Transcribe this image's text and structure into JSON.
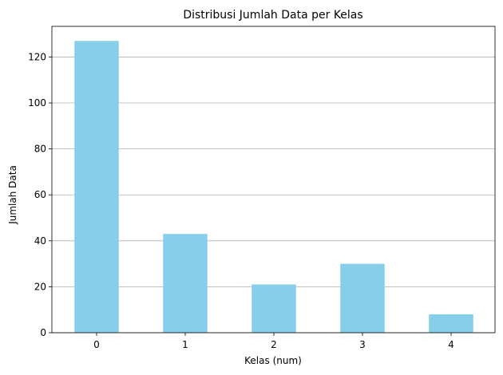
{
  "chart_data": {
    "type": "bar",
    "title": "Distribusi Jumlah Data per Kelas",
    "xlabel": "Kelas (num)",
    "ylabel": "Jumlah Data",
    "categories": [
      "0",
      "1",
      "2",
      "3",
      "4"
    ],
    "values": [
      127,
      43,
      21,
      30,
      8
    ],
    "ylim": [
      0,
      133.35
    ],
    "yticks": [
      0,
      20,
      40,
      60,
      80,
      100,
      120
    ],
    "grid": "y-axis only",
    "legend": "none",
    "bar_color": "#87ceeb",
    "grid_color": "#b0b0b0"
  }
}
